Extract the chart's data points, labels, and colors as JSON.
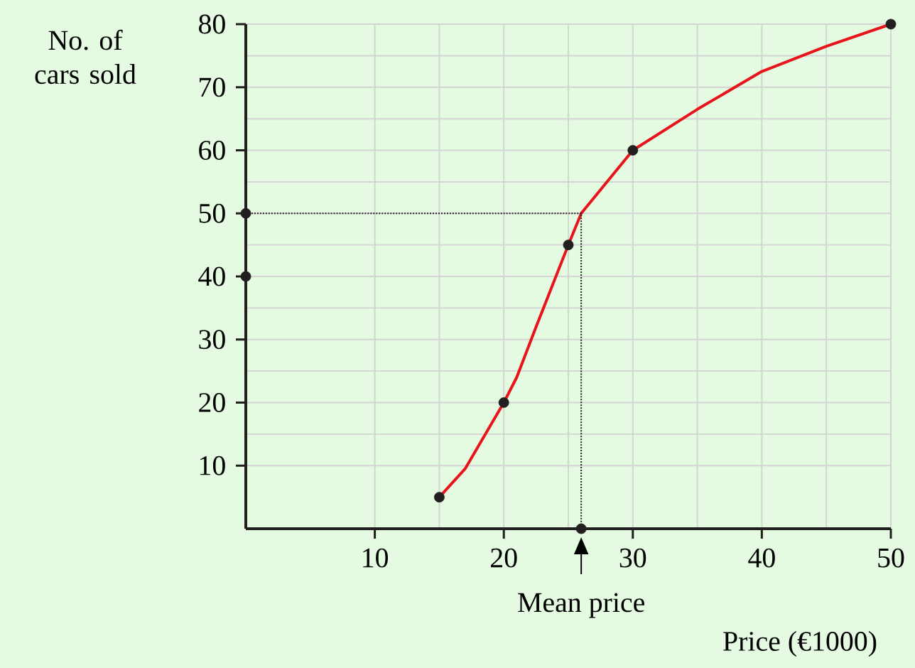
{
  "chart_data": {
    "type": "line",
    "xlabel": "Price (€1000)",
    "ylabel": "No. of cars sold",
    "xlim": [
      0,
      50
    ],
    "ylim": [
      0,
      80
    ],
    "xticks": [
      10,
      20,
      30,
      40,
      50
    ],
    "yticks": [
      10,
      20,
      30,
      40,
      50,
      60,
      70,
      80
    ],
    "grid": true,
    "annotations": [
      {
        "text": "Mean price",
        "x": 26,
        "y": 0
      }
    ],
    "series": [
      {
        "color": "#e8141b",
        "marker": "none",
        "line_style": "solid",
        "x": [
          15,
          17,
          20,
          21,
          22.5,
          25,
          26,
          30,
          35,
          40,
          45,
          50
        ],
        "values": [
          5,
          9.5,
          20,
          24,
          32,
          45,
          50,
          60,
          66.5,
          72.5,
          76.5,
          80
        ]
      },
      {
        "type": "scatter",
        "color": "#231f20",
        "marker": "circle",
        "x": [
          15,
          20,
          25,
          30,
          50,
          0,
          0,
          26
        ],
        "values": [
          5,
          20,
          45,
          60,
          80,
          50,
          40,
          0
        ]
      },
      {
        "color": "#231f20",
        "marker": "none",
        "line_style": "dotted",
        "x": [
          0,
          26,
          26
        ],
        "values": [
          50,
          50,
          0
        ]
      }
    ]
  }
}
